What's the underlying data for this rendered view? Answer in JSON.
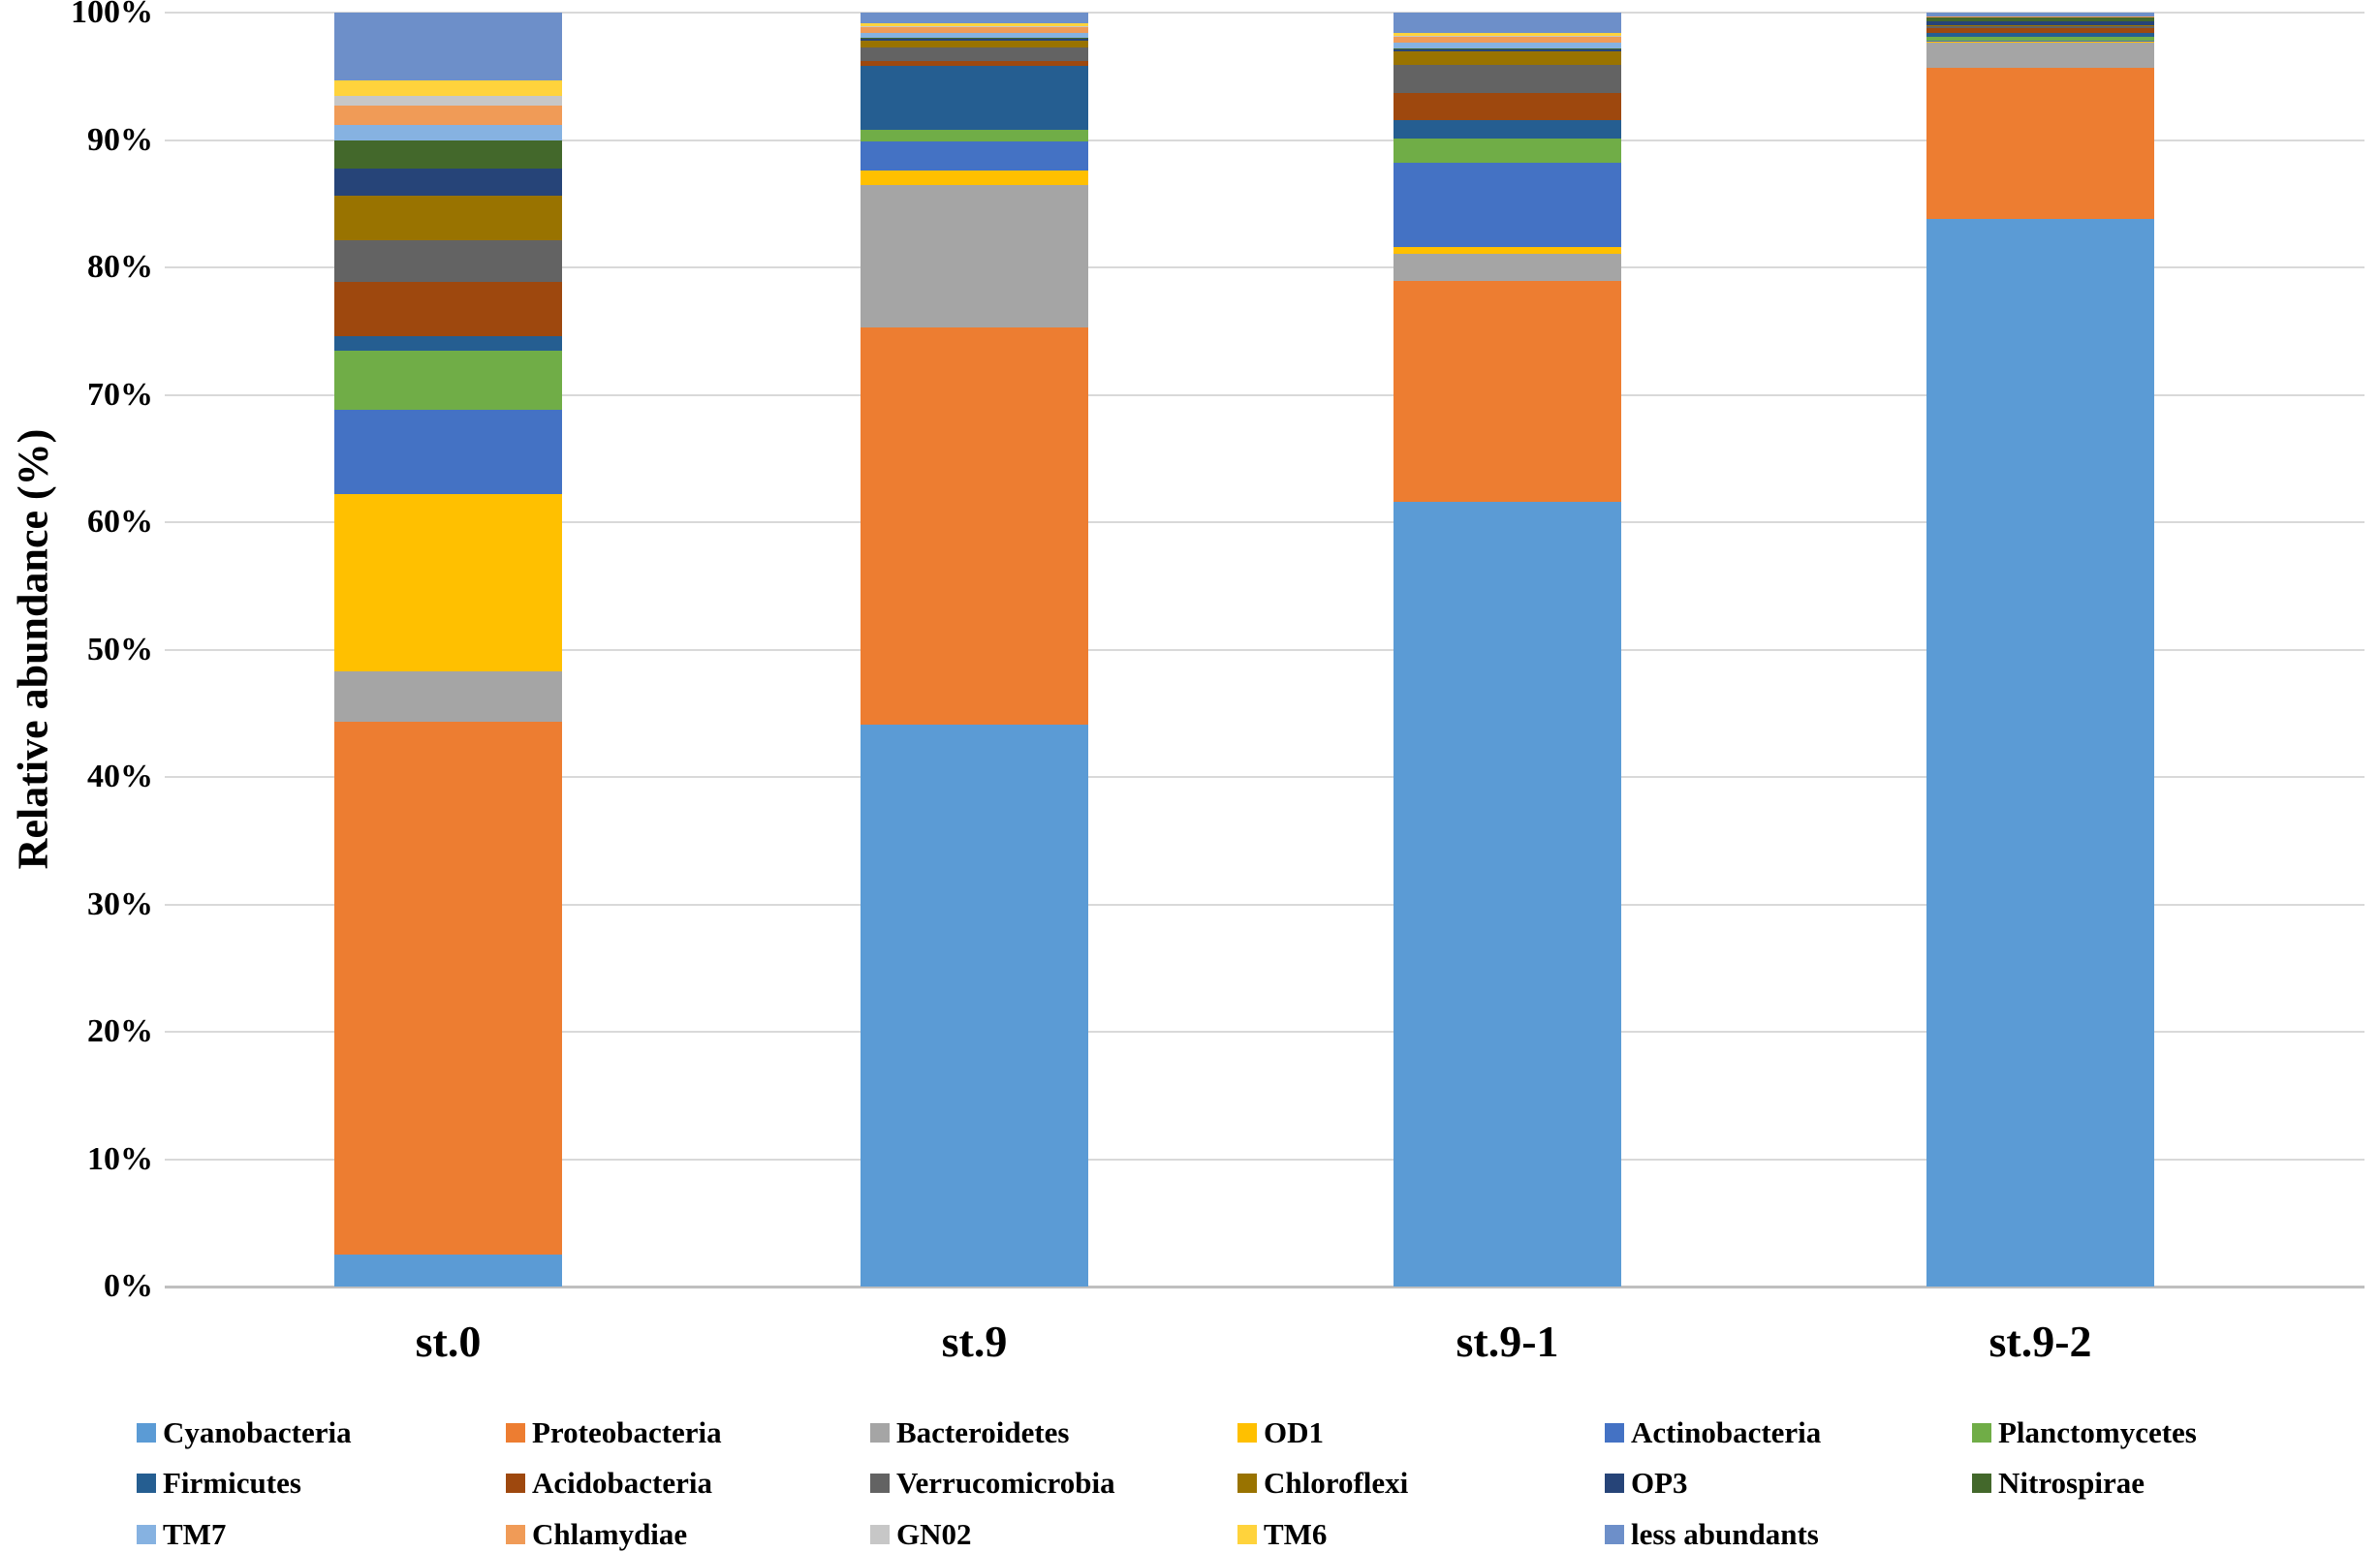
{
  "chart_data": {
    "type": "bar",
    "stacked": true,
    "orientation": "vertical",
    "title": "",
    "ylabel": "Relative abundance (%)",
    "xlabel": "",
    "categories": [
      "st.0",
      "st.9",
      "st.9-1",
      "st.9-2"
    ],
    "y_ticks": [
      "100%",
      "90%",
      "80%",
      "70%",
      "60%",
      "50%",
      "40%",
      "30%",
      "20%",
      "10%",
      "0%"
    ],
    "ylim": [
      0,
      100
    ],
    "grid": "horizontal",
    "gridline_color": "#d9d9d9",
    "legend_position": "bottom",
    "legend_rows": 3,
    "legend_columns": 6,
    "series": [
      {
        "name": "Cyanobacteria",
        "color": "#5B9BD5",
        "values": [
          2.5,
          44.1,
          61.6,
          83.8
        ]
      },
      {
        "name": "Proteobacteria",
        "color": "#ED7D31",
        "values": [
          41.8,
          31.2,
          17.3,
          11.85
        ]
      },
      {
        "name": "Bacteroidetes",
        "color": "#A5A5A5",
        "values": [
          4.0,
          11.2,
          2.2,
          2.0
        ]
      },
      {
        "name": "OD1",
        "color": "#FFC000",
        "values": [
          13.9,
          1.1,
          0.5,
          0.05
        ]
      },
      {
        "name": "Actinobacteria",
        "color": "#4472C4",
        "values": [
          6.6,
          2.3,
          6.6,
          0.1
        ]
      },
      {
        "name": "Planctomycetes",
        "color": "#70AD47",
        "values": [
          4.7,
          0.9,
          1.9,
          0.3
        ]
      },
      {
        "name": "Firmicutes",
        "color": "#255E91",
        "values": [
          1.1,
          5.0,
          1.5,
          0.3
        ]
      },
      {
        "name": "Acidobacteria",
        "color": "#9E480E",
        "values": [
          4.3,
          0.4,
          2.1,
          0.4
        ]
      },
      {
        "name": "Verrucomicrobia",
        "color": "#636363",
        "values": [
          3.2,
          1.1,
          2.2,
          0.15
        ]
      },
      {
        "name": "Chloroflexi",
        "color": "#997300",
        "values": [
          3.5,
          0.5,
          1.1,
          0.1
        ]
      },
      {
        "name": "OP3",
        "color": "#264478",
        "values": [
          2.2,
          0.15,
          0.1,
          0.3
        ]
      },
      {
        "name": "Nitrospirae",
        "color": "#43682B",
        "values": [
          2.2,
          0.1,
          0.1,
          0.25
        ]
      },
      {
        "name": "TM7",
        "color": "#86B2E1",
        "values": [
          1.2,
          0.4,
          0.45,
          0.05
        ]
      },
      {
        "name": "Chlamydiae",
        "color": "#F09B57",
        "values": [
          1.5,
          0.45,
          0.45,
          0.05
        ]
      },
      {
        "name": "GN02",
        "color": "#C7C7C7",
        "values": [
          0.8,
          0.05,
          0.05,
          0.0
        ]
      },
      {
        "name": "TM6",
        "color": "#FFD33C",
        "values": [
          1.2,
          0.25,
          0.25,
          0.0
        ]
      },
      {
        "name": "less abundants",
        "color": "#6D8FC9",
        "values": [
          5.3,
          0.8,
          1.6,
          0.3
        ]
      }
    ]
  }
}
